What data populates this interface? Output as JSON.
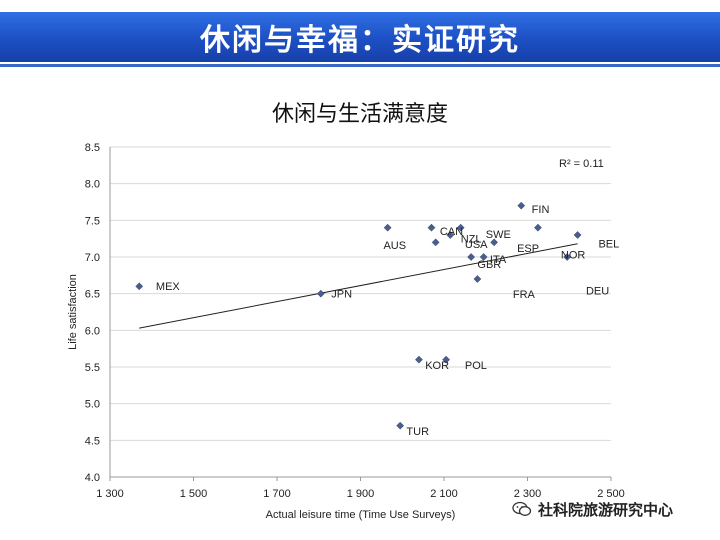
{
  "header": {
    "title": "休闲与幸福：实证研究"
  },
  "watermark": {
    "text": "社科院旅游研究中心",
    "icon": "wechat-icon"
  },
  "colors": {
    "header_blue": "#1d4fc4",
    "marker": "#4a5e8c",
    "trendline": "#222222",
    "grid": "#d9d9d9"
  },
  "chart_data": {
    "type": "scatter",
    "title": "休闲与生活满意度",
    "xlabel": "Actual leisure time (Time Use Surveys)",
    "ylabel": "Life satisfaction",
    "xlim": [
      1300,
      2500
    ],
    "ylim": [
      4.0,
      8.5
    ],
    "x_ticks": [
      1300,
      1500,
      1700,
      1900,
      2100,
      2300,
      2500
    ],
    "x_tick_labels": [
      "1 300",
      "1 500",
      "1 700",
      "1 900",
      "2 100",
      "2 300",
      "2 500"
    ],
    "y_ticks": [
      4.0,
      4.5,
      5.0,
      5.5,
      6.0,
      6.5,
      7.0,
      7.5,
      8.0,
      8.5
    ],
    "y_tick_labels": [
      "4.0",
      "4.5",
      "5.0",
      "5.5",
      "6.0",
      "6.5",
      "7.0",
      "7.5",
      "8.0",
      "8.5"
    ],
    "grid": "horizontal",
    "annotation": "R² = 0.11",
    "trendline": {
      "x": [
        1370,
        2420
      ],
      "y": [
        6.03,
        7.18
      ]
    },
    "points": [
      {
        "x": 1370,
        "y": 6.6
      },
      {
        "x": 1805,
        "y": 6.5
      },
      {
        "x": 1965,
        "y": 7.4
      },
      {
        "x": 1995,
        "y": 4.7
      },
      {
        "x": 2040,
        "y": 5.6
      },
      {
        "x": 2070,
        "y": 7.4
      },
      {
        "x": 2080,
        "y": 7.2
      },
      {
        "x": 2105,
        "y": 5.6
      },
      {
        "x": 2115,
        "y": 7.3
      },
      {
        "x": 2140,
        "y": 7.4
      },
      {
        "x": 2165,
        "y": 7.0
      },
      {
        "x": 2180,
        "y": 6.7
      },
      {
        "x": 2195,
        "y": 7.0
      },
      {
        "x": 2220,
        "y": 7.2
      },
      {
        "x": 2285,
        "y": 7.7
      },
      {
        "x": 2325,
        "y": 7.4
      },
      {
        "x": 2395,
        "y": 7.0
      },
      {
        "x": 2420,
        "y": 7.3
      }
    ],
    "labels": [
      {
        "text": "MEX",
        "x": 1410,
        "y": 6.55
      },
      {
        "text": "JPN",
        "x": 1830,
        "y": 6.45
      },
      {
        "text": "AUS",
        "x": 1955,
        "y": 7.11
      },
      {
        "text": "TUR",
        "x": 2010,
        "y": 4.57
      },
      {
        "text": "KOR",
        "x": 2055,
        "y": 5.47
      },
      {
        "text": "POL",
        "x": 2150,
        "y": 5.47
      },
      {
        "text": "CAN",
        "x": 2090,
        "y": 7.3
      },
      {
        "text": "NZL",
        "x": 2140,
        "y": 7.2
      },
      {
        "text": "USA",
        "x": 2150,
        "y": 7.12
      },
      {
        "text": "SWE",
        "x": 2200,
        "y": 7.26
      },
      {
        "text": "ITA",
        "x": 2210,
        "y": 6.92
      },
      {
        "text": "GBR",
        "x": 2180,
        "y": 6.85
      },
      {
        "text": "ESP",
        "x": 2275,
        "y": 7.07
      },
      {
        "text": "FRA",
        "x": 2265,
        "y": 6.44
      },
      {
        "text": "FIN",
        "x": 2310,
        "y": 7.6
      },
      {
        "text": "NOR",
        "x": 2380,
        "y": 6.98
      },
      {
        "text": "DEU",
        "x": 2440,
        "y": 6.49
      },
      {
        "text": "BEL",
        "x": 2470,
        "y": 7.13
      }
    ]
  }
}
